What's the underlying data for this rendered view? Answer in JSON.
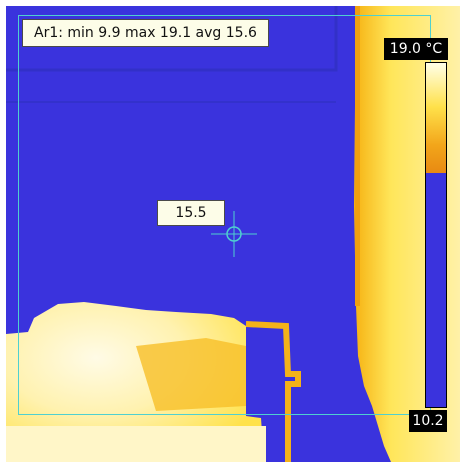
{
  "measurement": {
    "area_label": "Ar1: min 9.9 max 19.1 avg 15.6",
    "spot_label": "15.5"
  },
  "scale": {
    "max_label": "19.0 °C",
    "min_label": "10.2",
    "max_value": 19.0,
    "min_value": 10.2,
    "palette_split_level": 0.32
  },
  "colors": {
    "cold": "#3a33dd",
    "warm": "#ffd21a",
    "hot": "#fff6c8",
    "overlay_line": "#4fd0d0"
  }
}
